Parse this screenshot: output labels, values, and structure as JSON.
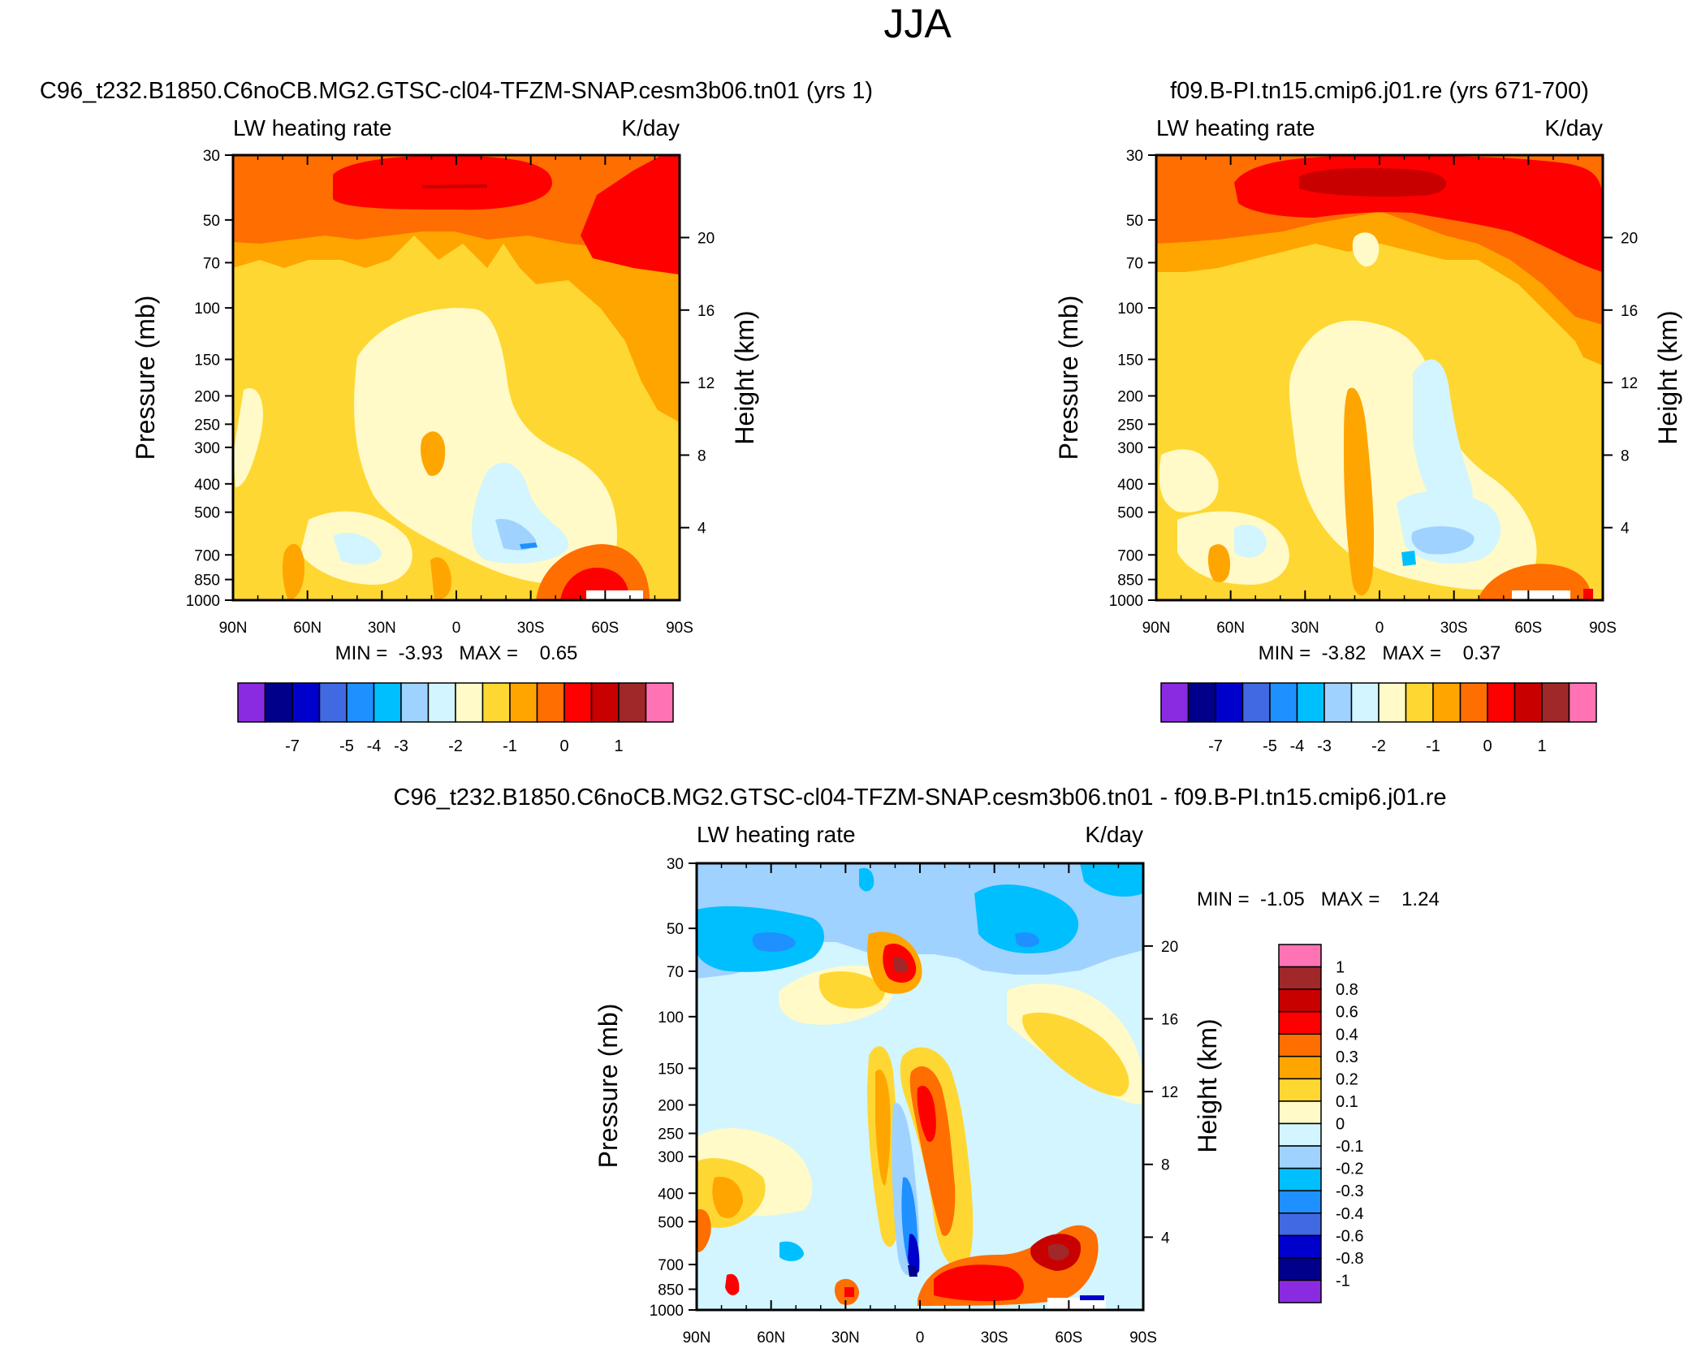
{
  "page_title": "JJA",
  "levels_full": [
    -8,
    -7,
    -6,
    -5,
    -4,
    -3,
    -2.5,
    -2,
    -1.5,
    -1,
    -0.5,
    0,
    0.5,
    1
  ],
  "colors_full": [
    "#8a2be2",
    "#00008b",
    "#0000cd",
    "#4169e1",
    "#1e90ff",
    "#00bfff",
    "#a0d2ff",
    "#d2f5ff",
    "#fffac8",
    "#ffd732",
    "#ffa500",
    "#ff6e00",
    "#ff0000",
    "#c80000",
    "#a02828",
    "#ff73b4"
  ],
  "levels_diff": [
    -1,
    -0.8,
    -0.6,
    -0.4,
    -0.3,
    -0.2,
    -0.1,
    0,
    0.1,
    0.2,
    0.3,
    0.4,
    0.6,
    0.8,
    1
  ],
  "colors_diff": [
    "#8a2be2",
    "#00008b",
    "#0000cd",
    "#4169e1",
    "#1e90ff",
    "#00bfff",
    "#a0d2ff",
    "#d2f5ff",
    "#fffac8",
    "#ffd732",
    "#ffa500",
    "#ff6e00",
    "#ff0000",
    "#c80000",
    "#a02828",
    "#ff73b4"
  ],
  "chart_data": [
    {
      "type": "heatmap",
      "subtitle": "C96_t232.B1850.C6noCB.MG2.GTSC-cl04-TFZM-SNAP.cesm3b06.tn01 (yrs 1)",
      "title_left": "LW heating rate",
      "title_right": "K/day",
      "xlabel": "",
      "ylabel": "Pressure (mb)",
      "ylabel_right": "Height (km)",
      "x_ticks": [
        "90N",
        "60N",
        "30N",
        "0",
        "30S",
        "60S",
        "90S"
      ],
      "x_range": [
        90,
        -90
      ],
      "y_range": [
        1000,
        30
      ],
      "y_ticks": [
        "30",
        "50",
        "70",
        "100",
        "150",
        "200",
        "250",
        "300",
        "400",
        "500",
        "700",
        "850",
        "1000"
      ],
      "y_tick_values": [
        30,
        50,
        70,
        100,
        150,
        200,
        250,
        300,
        400,
        500,
        700,
        850,
        1000
      ],
      "height_ticks": [
        "20",
        "16",
        "12",
        "8",
        "4"
      ],
      "height_values": [
        20,
        16,
        12,
        8,
        4
      ],
      "min_label": "MIN =  -3.93   MAX =    0.65",
      "legend_labels": [
        "-7",
        "-5",
        "-4",
        "-3",
        "-2",
        "-1",
        "0",
        "1"
      ]
    },
    {
      "type": "heatmap",
      "subtitle": "f09.B-PI.tn15.cmip6.j01.re (yrs 671-700)",
      "title_left": "LW heating rate",
      "title_right": "K/day",
      "xlabel": "",
      "ylabel": "Pressure (mb)",
      "ylabel_right": "Height (km)",
      "x_ticks": [
        "90N",
        "60N",
        "30N",
        "0",
        "30S",
        "60S",
        "90S"
      ],
      "x_range": [
        90,
        -90
      ],
      "y_range": [
        1000,
        30
      ],
      "y_ticks": [
        "30",
        "50",
        "70",
        "100",
        "150",
        "200",
        "250",
        "300",
        "400",
        "500",
        "700",
        "850",
        "1000"
      ],
      "y_tick_values": [
        30,
        50,
        70,
        100,
        150,
        200,
        250,
        300,
        400,
        500,
        700,
        850,
        1000
      ],
      "height_ticks": [
        "20",
        "16",
        "12",
        "8",
        "4"
      ],
      "height_values": [
        20,
        16,
        12,
        8,
        4
      ],
      "min_label": "MIN =  -3.82   MAX =    0.37",
      "legend_labels": [
        "-7",
        "-5",
        "-4",
        "-3",
        "-2",
        "-1",
        "0",
        "1"
      ]
    },
    {
      "type": "heatmap",
      "subtitle": "C96_t232.B1850.C6noCB.MG2.GTSC-cl04-TFZM-SNAP.cesm3b06.tn01 - f09.B-PI.tn15.cmip6.j01.re",
      "title_left": "LW heating rate",
      "title_right": "K/day",
      "xlabel": "",
      "ylabel": "Pressure (mb)",
      "ylabel_right": "Height (km)",
      "x_ticks": [
        "90N",
        "60N",
        "30N",
        "0",
        "30S",
        "60S",
        "90S"
      ],
      "x_range": [
        90,
        -90
      ],
      "y_range": [
        1000,
        30
      ],
      "y_ticks": [
        "30",
        "50",
        "70",
        "100",
        "150",
        "200",
        "250",
        "300",
        "400",
        "500",
        "700",
        "850",
        "1000"
      ],
      "y_tick_values": [
        30,
        50,
        70,
        100,
        150,
        200,
        250,
        300,
        400,
        500,
        700,
        850,
        1000
      ],
      "height_ticks": [
        "20",
        "16",
        "12",
        "8",
        "4"
      ],
      "height_values": [
        20,
        16,
        12,
        8,
        4
      ],
      "min_label": "MIN =  -1.05   MAX =    1.24",
      "legend_labels": [
        "1",
        "0.8",
        "0.6",
        "0.4",
        "0.3",
        "0.2",
        "0.1",
        "0",
        "-0.1",
        "-0.2",
        "-0.3",
        "-0.4",
        "-0.6",
        "-0.8",
        "-1"
      ]
    }
  ]
}
